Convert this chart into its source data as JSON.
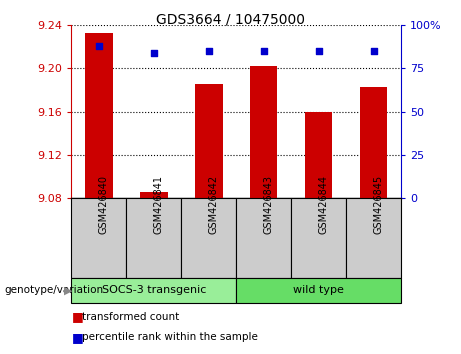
{
  "title": "GDS3664 / 10475000",
  "categories": [
    "GSM426840",
    "GSM426841",
    "GSM426842",
    "GSM426843",
    "GSM426844",
    "GSM426845"
  ],
  "bar_values": [
    9.232,
    9.086,
    9.185,
    9.202,
    9.16,
    9.183
  ],
  "percentile_values": [
    88,
    84,
    85,
    85,
    85,
    85
  ],
  "bar_color": "#cc0000",
  "dot_color": "#0000cc",
  "ylim_left": [
    9.08,
    9.24
  ],
  "ylim_right": [
    0,
    100
  ],
  "yticks_left": [
    9.08,
    9.12,
    9.16,
    9.2,
    9.24
  ],
  "ytick_labels_left": [
    "9.08",
    "9.12",
    "9.16",
    "9.20",
    "9.24"
  ],
  "yticks_right": [
    0,
    25,
    50,
    75,
    100
  ],
  "ytick_labels_right": [
    "0",
    "25",
    "50",
    "75",
    "100%"
  ],
  "groups": [
    {
      "label": "SOCS-3 transgenic",
      "indices": [
        0,
        1,
        2
      ],
      "color": "#99ee99"
    },
    {
      "label": "wild type",
      "indices": [
        3,
        4,
        5
      ],
      "color": "#66dd66"
    }
  ],
  "group_label_prefix": "genotype/variation",
  "legend_items": [
    {
      "label": "transformed count",
      "color": "#cc0000"
    },
    {
      "label": "percentile rank within the sample",
      "color": "#0000cc"
    }
  ],
  "bar_width": 0.5,
  "left_axis_color": "#cc0000",
  "right_axis_color": "#0000cc",
  "bar_bottom": 9.08,
  "label_cell_color": "#cccccc",
  "title_fontsize": 10,
  "tick_fontsize": 8,
  "legend_fontsize": 7.5
}
